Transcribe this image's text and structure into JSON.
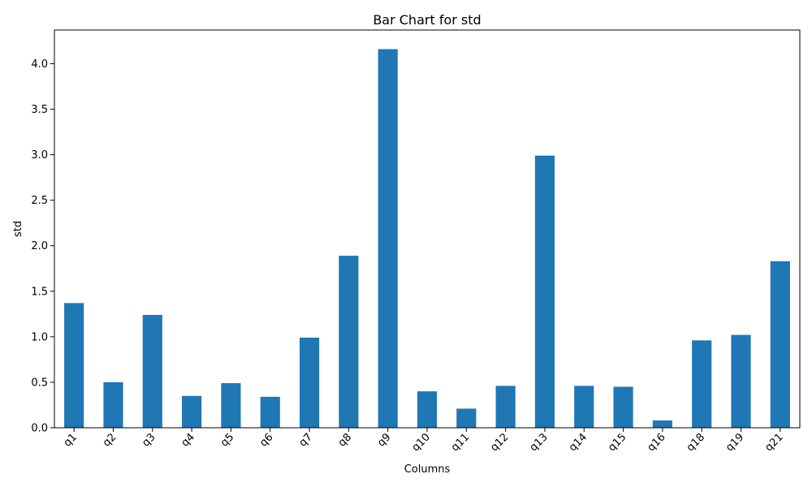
{
  "chart_data": {
    "type": "bar",
    "title": "Bar Chart for std",
    "xlabel": "Columns",
    "ylabel": "std",
    "categories": [
      "q1",
      "q2",
      "q3",
      "q4",
      "q5",
      "q6",
      "q7",
      "q8",
      "q9",
      "q10",
      "q11",
      "q12",
      "q13",
      "q14",
      "q15",
      "q16",
      "q18",
      "q19",
      "q21"
    ],
    "values": [
      1.37,
      0.5,
      1.24,
      0.35,
      0.49,
      0.34,
      0.99,
      1.89,
      4.16,
      0.4,
      0.21,
      0.46,
      2.99,
      0.46,
      0.45,
      0.08,
      0.96,
      1.02,
      1.83
    ],
    "ylim": [
      0,
      4.37
    ],
    "yticks": [
      "0.0",
      "0.5",
      "1.0",
      "1.5",
      "2.0",
      "2.5",
      "3.0",
      "3.5",
      "4.0"
    ],
    "bar_color": "#1f77b4",
    "grid": false,
    "legend": "none"
  }
}
